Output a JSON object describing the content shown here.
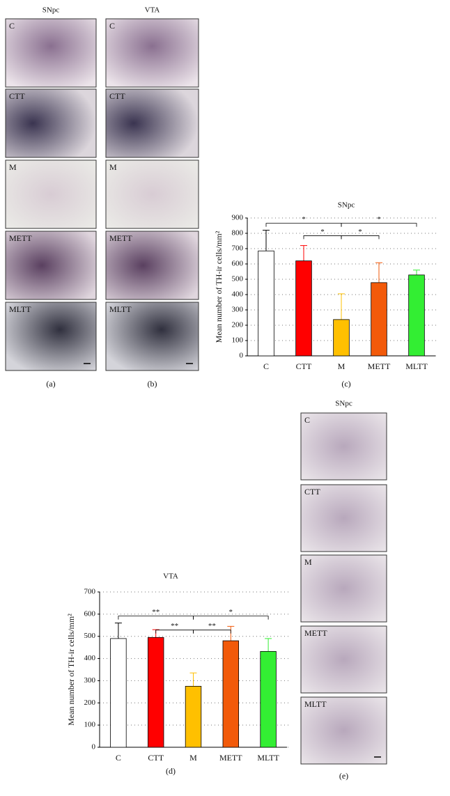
{
  "panels": [
    {
      "title": "SNpc",
      "label": "(a)",
      "images": [
        "C",
        "CTT",
        "M",
        "METT",
        "MLTT"
      ]
    },
    {
      "title": "VTA",
      "label": "(b)",
      "images": [
        "C",
        "CTT",
        "M",
        "METT",
        "MLTT"
      ]
    },
    {
      "title": "SNpc",
      "label": "(e)",
      "images": [
        "C",
        "CTT",
        "M",
        "METT",
        "MLTT"
      ]
    }
  ],
  "chart_data": [
    {
      "type": "bar",
      "title": "SNpc",
      "caption": "(c)",
      "y_label": "Mean number of TH-ir cells/mm²",
      "categories": [
        "C",
        "CTT",
        "M",
        "METT",
        "MLTT"
      ],
      "values": [
        685,
        620,
        237,
        478,
        528
      ],
      "errors": [
        135,
        100,
        168,
        130,
        32
      ],
      "colors": [
        "#ffffff",
        "#ff0000",
        "#ffc000",
        "#f25a0a",
        "#33ee33"
      ],
      "ylim": [
        0,
        900
      ],
      "yticks": [
        0,
        100,
        200,
        300,
        400,
        500,
        600,
        700,
        800,
        900
      ],
      "grid": true,
      "annotations": [
        {
          "from": "C",
          "to": "M",
          "label": "*"
        },
        {
          "from": "M",
          "to": "MLTT",
          "label": "*"
        },
        {
          "from": "CTT",
          "to": "M",
          "label": "*"
        },
        {
          "from": "M",
          "to": "METT",
          "label": "*"
        }
      ]
    },
    {
      "type": "bar",
      "title": "VTA",
      "caption": "(d)",
      "y_label": "Mean number of TH-ir cells/mm²",
      "categories": [
        "C",
        "CTT",
        "M",
        "METT",
        "MLTT"
      ],
      "values": [
        490,
        495,
        275,
        480,
        432
      ],
      "errors": [
        70,
        35,
        60,
        65,
        58
      ],
      "colors": [
        "#ffffff",
        "#ff0000",
        "#ffc000",
        "#f25a0a",
        "#33ee33"
      ],
      "ylim": [
        0,
        700
      ],
      "yticks": [
        0,
        100,
        200,
        300,
        400,
        500,
        600,
        700
      ],
      "grid": true,
      "annotations": [
        {
          "from": "C",
          "to": "M",
          "label": "**"
        },
        {
          "from": "M",
          "to": "MLTT",
          "label": "*"
        },
        {
          "from": "CTT",
          "to": "M",
          "label": "**"
        },
        {
          "from": "M",
          "to": "METT",
          "label": "**"
        }
      ]
    }
  ]
}
